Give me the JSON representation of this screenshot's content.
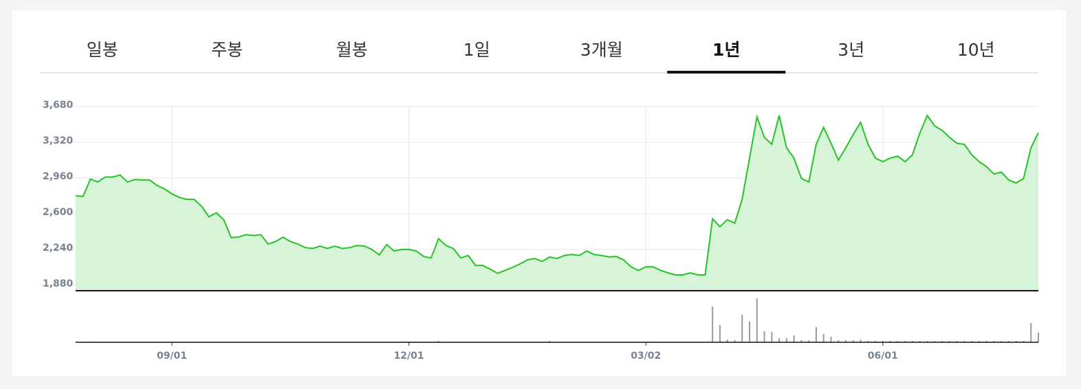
{
  "tabs": [
    "일봉",
    "주봉",
    "월봉",
    "1일",
    "3개월",
    "1년",
    "3년",
    "10년"
  ],
  "active_tab": 5,
  "chart_data": {
    "type": "line",
    "categories": [
      null,
      null,
      null,
      null,
      null,
      null,
      null,
      null,
      null,
      null,
      null,
      null,
      null,
      "09/01",
      null,
      null,
      null,
      null,
      null,
      null,
      null,
      null,
      null,
      null,
      null,
      null,
      null,
      null,
      null,
      null,
      null,
      null,
      null,
      null,
      null,
      null,
      null,
      null,
      null,
      null,
      null,
      null,
      null,
      null,
      null,
      "12/01",
      null,
      null,
      null,
      null,
      null,
      null,
      null,
      null,
      null,
      null,
      null,
      null,
      null,
      null,
      null,
      null,
      null,
      null,
      null,
      null,
      null,
      null,
      null,
      null,
      null,
      null,
      null,
      null,
      null,
      null,
      null,
      "03/02",
      null,
      null,
      null,
      null,
      null,
      null,
      null,
      null,
      null,
      null,
      null,
      null,
      null,
      null,
      null,
      null,
      null,
      null,
      null,
      null,
      null,
      null,
      null,
      null,
      null,
      null,
      null,
      null,
      null,
      null,
      null,
      "06/01",
      null,
      null,
      null,
      null,
      null,
      null,
      null,
      null,
      null,
      null,
      null,
      null,
      null,
      null,
      null,
      null,
      null,
      null,
      null,
      null,
      null
    ],
    "series": [
      {
        "color": "#22c322",
        "fill": "#d8f4d8",
        "values": [
          2780,
          2775,
          2950,
          2920,
          2970,
          2970,
          2990,
          2920,
          2945,
          2940,
          2940,
          2885,
          2850,
          2800,
          2765,
          2745,
          2745,
          2675,
          2570,
          2610,
          2540,
          2360,
          2365,
          2390,
          2380,
          2390,
          2295,
          2320,
          2365,
          2320,
          2295,
          2260,
          2250,
          2275,
          2250,
          2275,
          2250,
          2260,
          2280,
          2275,
          2240,
          2185,
          2290,
          2225,
          2240,
          2240,
          2225,
          2170,
          2155,
          2350,
          2280,
          2250,
          2155,
          2180,
          2080,
          2080,
          2040,
          2000,
          2030,
          2060,
          2095,
          2135,
          2150,
          2120,
          2165,
          2150,
          2180,
          2190,
          2180,
          2225,
          2190,
          2180,
          2165,
          2170,
          2135,
          2065,
          2030,
          2065,
          2065,
          2030,
          2005,
          1984,
          1984,
          2005,
          1984,
          1984,
          2550,
          2470,
          2540,
          2505,
          2745,
          3160,
          3575,
          3370,
          3300,
          3590,
          3265,
          3160,
          2955,
          2920,
          3300,
          3470,
          3310,
          3140,
          3265,
          3400,
          3520,
          3300,
          3160,
          3125,
          3160,
          3180,
          3125,
          3195,
          3415,
          3590,
          3485,
          3440,
          3370,
          3310,
          3300,
          3195,
          3125,
          3075,
          3000,
          3020,
          2940,
          2910,
          2955,
          3265,
          3415
        ]
      }
    ],
    "volume": {
      "color": "#999999",
      "ylim": [
        0,
        68
      ],
      "values": [
        0.5,
        0.5,
        1,
        0.5,
        0.5,
        0.5,
        0.5,
        0.5,
        0.5,
        0.5,
        0.5,
        0.5,
        0.5,
        0.5,
        0.5,
        0.5,
        0.5,
        0.5,
        0.5,
        0.5,
        0.5,
        0.5,
        0.5,
        0.5,
        0.5,
        0.5,
        0.5,
        0.5,
        0.5,
        0.5,
        0.5,
        0.5,
        0.5,
        0.5,
        0.5,
        0.5,
        0.5,
        0.5,
        0.5,
        0.5,
        0.5,
        0.5,
        0.5,
        0.5,
        0.5,
        0.5,
        0.5,
        0.5,
        0.5,
        2,
        0.5,
        0.5,
        0.5,
        0.5,
        0.5,
        0.5,
        0.5,
        0.5,
        0.5,
        0.5,
        0.5,
        0.5,
        0.5,
        0.5,
        2,
        0.5,
        0.5,
        0.5,
        0.5,
        0.5,
        0.5,
        0.5,
        0.5,
        0.5,
        0.5,
        0.5,
        0.5,
        0.5,
        0.5,
        0.5,
        0.5,
        0.5,
        0.5,
        0.5,
        0.5,
        0.5,
        52,
        25,
        4,
        3,
        40,
        30,
        64,
        16,
        15,
        6,
        6,
        10,
        3,
        3,
        22,
        12,
        8,
        3,
        3,
        3,
        4,
        2,
        2,
        2,
        2,
        2,
        2,
        2,
        2,
        2,
        2,
        2,
        2,
        2,
        2,
        2,
        2,
        2,
        2,
        2,
        2,
        2,
        2,
        28,
        14
      ]
    },
    "ylim": [
      1825,
      3680
    ],
    "yticks": [
      {
        "value": 1880,
        "label": "1,880"
      },
      {
        "value": 2240,
        "label": "2,240"
      },
      {
        "value": 2600,
        "label": "2,600"
      },
      {
        "value": 2960,
        "label": "2,960"
      },
      {
        "value": 3320,
        "label": "3,320"
      },
      {
        "value": 3680,
        "label": "3,680"
      }
    ],
    "grid": true
  }
}
